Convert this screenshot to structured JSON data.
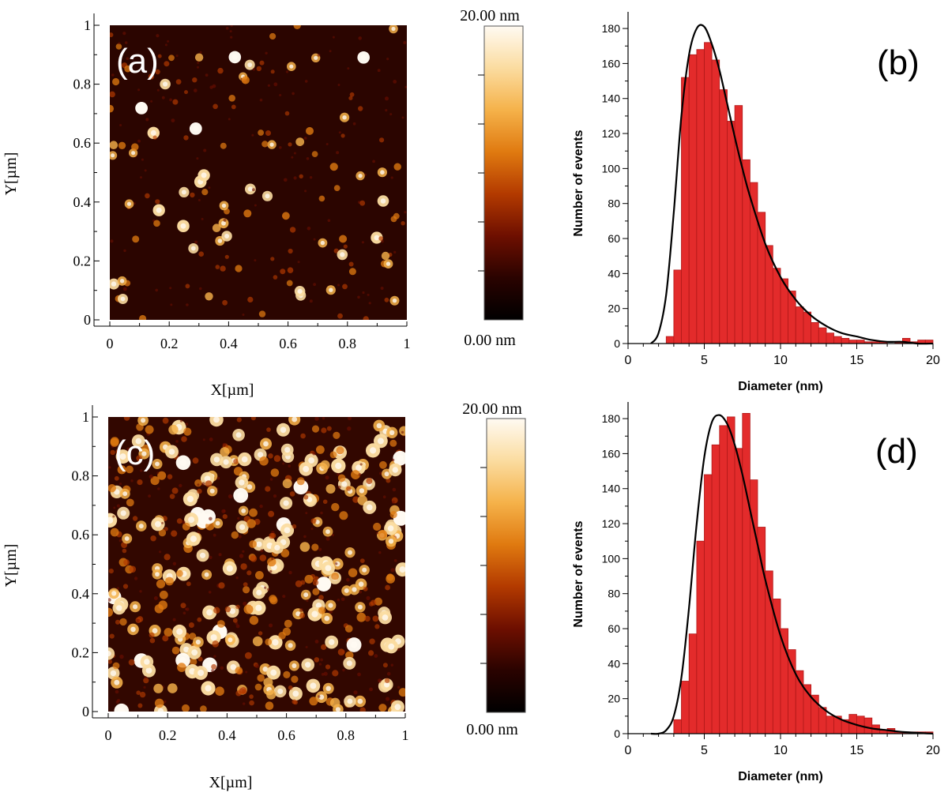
{
  "colorbar": {
    "max_label": "20.00 nm",
    "min_label": "0.00 nm",
    "colors": [
      "#000000",
      "#2a0300",
      "#6e0f00",
      "#b33a00",
      "#e07a10",
      "#f5b24a",
      "#fbdca0",
      "#fffaf2"
    ]
  },
  "chart_data": [
    {
      "type": "heatmap",
      "panel_label": "(a)",
      "xlabel": "X[µm]",
      "ylabel": "Y[µm]",
      "xlim": [
        0,
        1
      ],
      "ylim": [
        0,
        1
      ],
      "x_ticks": [
        "0",
        "0.2",
        "0.4",
        "0.6",
        "0.8",
        "1"
      ],
      "y_ticks": [
        "0",
        "0.2",
        "0.4",
        "0.6",
        "0.8",
        "1"
      ],
      "z_range_nm": [
        0,
        20
      ],
      "background_color": "#2b0500"
    },
    {
      "type": "bar",
      "panel_label": "(b)",
      "xlabel": "Diameter (nm)",
      "ylabel": "Number of events",
      "xlim": [
        0,
        20
      ],
      "ylim": [
        0,
        185
      ],
      "x_ticks": [
        "0",
        "5",
        "10",
        "15",
        "20"
      ],
      "y_ticks": [
        "0",
        "20",
        "40",
        "60",
        "80",
        "100",
        "120",
        "140",
        "160",
        "180"
      ],
      "bin_width": 0.5,
      "bin_start": [
        2.5,
        3,
        3.5,
        4,
        4.5,
        5,
        5.5,
        6,
        6.5,
        7,
        7.5,
        8,
        8.5,
        9,
        9.5,
        10,
        10.5,
        11,
        11.5,
        12,
        12.5,
        13,
        13.5,
        14,
        14.5,
        15,
        15.5,
        16,
        16.5,
        17,
        17.5,
        18,
        18.5,
        19,
        19.5
      ],
      "values": [
        4,
        42,
        152,
        165,
        168,
        172,
        162,
        145,
        127,
        136,
        105,
        92,
        75,
        56,
        43,
        37,
        30,
        21,
        18,
        12,
        9,
        6,
        4,
        3,
        2,
        2,
        1,
        1,
        1,
        0,
        1,
        3,
        1,
        2,
        2
      ],
      "fit_x": [
        1.5,
        2,
        2.5,
        3,
        3.5,
        4,
        4.5,
        5,
        5.5,
        6,
        6.5,
        7,
        7.5,
        8,
        9,
        10,
        11,
        12,
        13,
        14,
        15,
        16,
        17,
        18,
        19,
        20
      ],
      "fit_y": [
        0,
        6,
        28,
        75,
        130,
        165,
        180,
        181,
        171,
        156,
        137,
        118,
        100,
        84,
        57,
        38,
        25,
        16,
        10,
        6,
        4,
        2,
        1,
        1,
        0,
        0
      ],
      "bar_color": "#e32b2b",
      "fit_color": "#000000"
    },
    {
      "type": "heatmap",
      "panel_label": "(c)",
      "xlabel": "X[µm]",
      "ylabel": "Y[µm]",
      "xlim": [
        0,
        1
      ],
      "ylim": [
        0,
        1
      ],
      "x_ticks": [
        "0",
        "0.2",
        "0.4",
        "0.6",
        "0.8",
        "1"
      ],
      "y_ticks": [
        "0",
        "0.2",
        "0.4",
        "0.6",
        "0.8",
        "1"
      ],
      "z_range_nm": [
        0,
        20
      ],
      "background_color": "#320700"
    },
    {
      "type": "bar",
      "panel_label": "(d)",
      "xlabel": "Diameter (nm)",
      "ylabel": "Number of events",
      "xlim": [
        0,
        20
      ],
      "ylim": [
        0,
        185
      ],
      "x_ticks": [
        "0",
        "5",
        "10",
        "15",
        "20"
      ],
      "y_ticks": [
        "0",
        "20",
        "40",
        "60",
        "80",
        "100",
        "120",
        "140",
        "160",
        "180"
      ],
      "bin_width": 0.5,
      "bin_start": [
        3,
        3.5,
        4,
        4.5,
        5,
        5.5,
        6,
        6.5,
        7,
        7.5,
        8,
        8.5,
        9,
        9.5,
        10,
        10.5,
        11,
        11.5,
        12,
        12.5,
        13,
        13.5,
        14,
        14.5,
        15,
        15.5,
        16,
        16.5,
        17,
        17.5,
        18,
        18.5,
        19,
        19.5
      ],
      "values": [
        8,
        30,
        57,
        110,
        148,
        165,
        176,
        181,
        163,
        183,
        145,
        118,
        93,
        77,
        60,
        48,
        36,
        28,
        22,
        15,
        10,
        10,
        8,
        11,
        10,
        9,
        5,
        2,
        3,
        1,
        1,
        1,
        1,
        1
      ],
      "fit_x": [
        1.5,
        2,
        2.5,
        3,
        3.5,
        4,
        4.5,
        5,
        5.5,
        6,
        6.5,
        7,
        7.5,
        8,
        8.5,
        9,
        10,
        11,
        12,
        13,
        14,
        15,
        16,
        17,
        18,
        20
      ],
      "fit_y": [
        0,
        0,
        2,
        10,
        32,
        72,
        120,
        158,
        178,
        182,
        177,
        165,
        148,
        128,
        108,
        88,
        56,
        34,
        21,
        13,
        8,
        5,
        3,
        2,
        1,
        0
      ],
      "bar_color": "#e32b2b",
      "fit_color": "#000000"
    }
  ]
}
